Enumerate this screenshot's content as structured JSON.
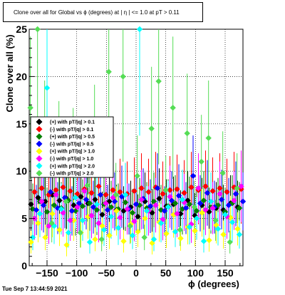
{
  "page": {
    "title": "Clone  over all for Global vs ϕ (degrees) at |  η | <= 1.0 at pT > 0.11",
    "timestamp": "Tue Sep  7 13:44:59 2021"
  },
  "chart_data": {
    "type": "scatter",
    "title": "Clone  over all for Global vs ϕ (degrees) at |  η | <= 1.0 at pT > 0.11",
    "xlabel": "ϕ (degrees)",
    "ylabel": "Clone  over all (%)",
    "xlim": [
      -180,
      180
    ],
    "ylim": [
      0,
      25
    ],
    "x_ticks": [
      -150,
      -100,
      -50,
      0,
      50,
      100,
      150
    ],
    "x_tick_labels": [
      "−150",
      "−100",
      "−50",
      "0",
      "50",
      "100",
      "150"
    ],
    "y_ticks": [
      0,
      5,
      10,
      15,
      20,
      25
    ],
    "y_tick_labels": [
      "0",
      "5",
      "10",
      "15",
      "20",
      "25"
    ],
    "grid": true,
    "legend_position": "left-middle",
    "series": [
      {
        "name": "(+) with pT/|q| > 0.1",
        "color": "#000000",
        "marker": "diamond",
        "x": [
          -177,
          -165,
          -153,
          -141,
          -129,
          -117,
          -105,
          -93,
          -81,
          -69,
          -57,
          -45,
          -33,
          -21,
          -9,
          3,
          15,
          27,
          39,
          51,
          63,
          75,
          87,
          99,
          111,
          123,
          135,
          147,
          159,
          171
        ],
        "y": [
          6.5,
          7.2,
          6.8,
          7.5,
          6.9,
          7.1,
          6.4,
          7.3,
          6.6,
          7.0,
          5.4,
          6.8,
          5.9,
          5.8,
          6.2,
          5.2,
          6.8,
          5.6,
          7.1,
          6.3,
          6.5,
          5.5,
          6.9,
          5.3,
          6.4,
          5.7,
          6.1,
          5.9,
          6.6,
          6.2
        ]
      },
      {
        "name": "(-) with pT/|q| > 0.1",
        "color": "#ff0000",
        "marker": "diamond",
        "x": [
          -171,
          -159,
          -147,
          -135,
          -123,
          -111,
          -99,
          -87,
          -75,
          -63,
          -51,
          -39,
          -27,
          -15,
          -3,
          9,
          21,
          33,
          45,
          57,
          69,
          81,
          93,
          105,
          117,
          129,
          141,
          153,
          165,
          177
        ],
        "y": [
          7.8,
          8.2,
          7.5,
          8.0,
          8.3,
          7.9,
          7.6,
          8.1,
          7.7,
          8.4,
          7.5,
          8.0,
          7.8,
          7.6,
          7.9,
          8.2,
          7.8,
          8.3,
          7.6,
          8.0,
          8.1,
          7.7,
          8.3,
          8.0,
          8.4,
          7.9,
          8.2,
          7.8,
          8.3,
          8.1
        ]
      },
      {
        "name": "(+) with pT/|q| > 0.5",
        "color": "#008000",
        "marker": "diamond",
        "x": [
          -174,
          -162,
          -150,
          -138,
          -126,
          -114,
          -102,
          -90,
          -78,
          -66,
          -54,
          -42,
          -30,
          -18,
          -6,
          6,
          18,
          30,
          42,
          54,
          66,
          78,
          90,
          102,
          114,
          126,
          138,
          150,
          162,
          174
        ],
        "y": [
          6.0,
          6.8,
          5.7,
          6.4,
          6.1,
          6.9,
          5.8,
          6.3,
          6.6,
          5.9,
          6.5,
          6.2,
          6.0,
          6.7,
          5.6,
          6.4,
          6.1,
          6.8,
          5.9,
          6.3,
          6.6,
          6.0,
          6.5,
          5.8,
          6.9,
          6.2,
          6.4,
          5.7,
          6.6,
          6.1
        ]
      },
      {
        "name": "(-) with pT/|q| > 0.5",
        "color": "#0000ff",
        "marker": "diamond",
        "x": [
          -168,
          -156,
          -144,
          -132,
          -120,
          -108,
          -96,
          -84,
          -72,
          -60,
          -48,
          -36,
          -24,
          -12,
          0,
          12,
          24,
          36,
          48,
          60,
          72,
          84,
          96,
          108,
          120,
          132,
          144,
          156,
          168,
          180
        ],
        "y": [
          5.9,
          6.4,
          7.8,
          6.1,
          7.2,
          5.8,
          6.6,
          7.0,
          6.2,
          7.5,
          5.9,
          6.8,
          7.3,
          6.0,
          6.5,
          7.1,
          6.3,
          8.2,
          5.8,
          6.9,
          7.4,
          6.1,
          9.5,
          6.6,
          7.7,
          6.2,
          7.0,
          6.4,
          7.6,
          6.8
        ]
      },
      {
        "name": "(+) with pT/|q| > 1.0",
        "color": "#ffff00",
        "marker": "diamond",
        "x": [
          -177,
          -165,
          -153,
          -141,
          -129,
          -117,
          -105,
          -93,
          -81,
          -69,
          -57,
          -45,
          -33,
          -21,
          -9,
          3,
          15,
          27,
          39,
          51,
          63,
          75,
          87,
          99,
          111,
          123,
          135,
          147,
          159,
          171
        ],
        "y": [
          2.5,
          4.5,
          3.0,
          5.5,
          3.8,
          2.2,
          4.8,
          3.5,
          5.2,
          2.8,
          4.2,
          3.2,
          5.8,
          2.6,
          4.4,
          3.6,
          5.0,
          2.4,
          4.6,
          3.4,
          5.4,
          2.9,
          4.1,
          3.7,
          5.6,
          2.7,
          4.3,
          3.3,
          5.1,
          3.9
        ]
      },
      {
        "name": "(-) with pT/|q| > 1.0",
        "color": "#ff00ff",
        "marker": "diamond",
        "x": [
          -171,
          -159,
          -147,
          -135,
          -123,
          -111,
          -99,
          -87,
          -75,
          -63,
          -51,
          -39,
          -27,
          -15,
          -3,
          9,
          21,
          33,
          45,
          57,
          69,
          81,
          93,
          105,
          117,
          129,
          141,
          153,
          165,
          177
        ],
        "y": [
          5.0,
          6.8,
          4.2,
          7.5,
          5.6,
          4.8,
          6.2,
          7.9,
          5.3,
          4.5,
          6.6,
          7.2,
          5.1,
          6.0,
          4.7,
          7.0,
          5.8,
          6.4,
          4.9,
          7.3,
          5.5,
          6.7,
          4.4,
          8.2,
          5.9,
          6.1,
          7.6,
          5.2,
          6.9,
          8.4
        ]
      },
      {
        "name": "(+) with pT/|q| > 2.0",
        "color": "#00ffff",
        "marker": "diamond",
        "x": [
          -174,
          -162,
          -150,
          -138,
          -126,
          -114,
          -102,
          -90,
          -78,
          -66,
          -54,
          -42,
          -30,
          -18,
          -6,
          6,
          18,
          30,
          42,
          54,
          66,
          78,
          90,
          102,
          114,
          126,
          138,
          150,
          162,
          174
        ],
        "y": [
          3.0,
          5.5,
          18.8,
          4.2,
          6.0,
          3.5,
          7.2,
          4.8,
          2.5,
          6.5,
          3.8,
          5.2,
          4.0,
          7.5,
          3.2,
          25.0,
          5.8,
          2.8,
          4.5,
          6.2,
          3.6,
          7.0,
          4.1,
          5.0,
          2.6,
          6.8,
          3.9,
          5.4,
          4.6,
          3.3
        ]
      },
      {
        "name": "(-) with pT/|q| > 2.0",
        "color": "#55dd55",
        "marker": "diamond",
        "x": [
          -178,
          -166,
          -154,
          -142,
          -130,
          -118,
          -106,
          -94,
          -82,
          -70,
          -58,
          -46,
          -34,
          -22,
          -10,
          2,
          14,
          26,
          38,
          50,
          62,
          74,
          86,
          98,
          110,
          122,
          134,
          146,
          158,
          170
        ],
        "y": [
          16.7,
          25.0,
          13.5,
          4.5,
          12.0,
          6.8,
          11.5,
          3.5,
          8.5,
          13.2,
          2.8,
          20.5,
          7.5,
          20.0,
          4.2,
          9.5,
          3.0,
          14.5,
          19.5,
          8.0,
          16.7,
          3.8,
          14.0,
          6.2,
          11.0,
          13.5,
          4.8,
          9.8,
          2.5,
          8.2
        ]
      }
    ]
  }
}
